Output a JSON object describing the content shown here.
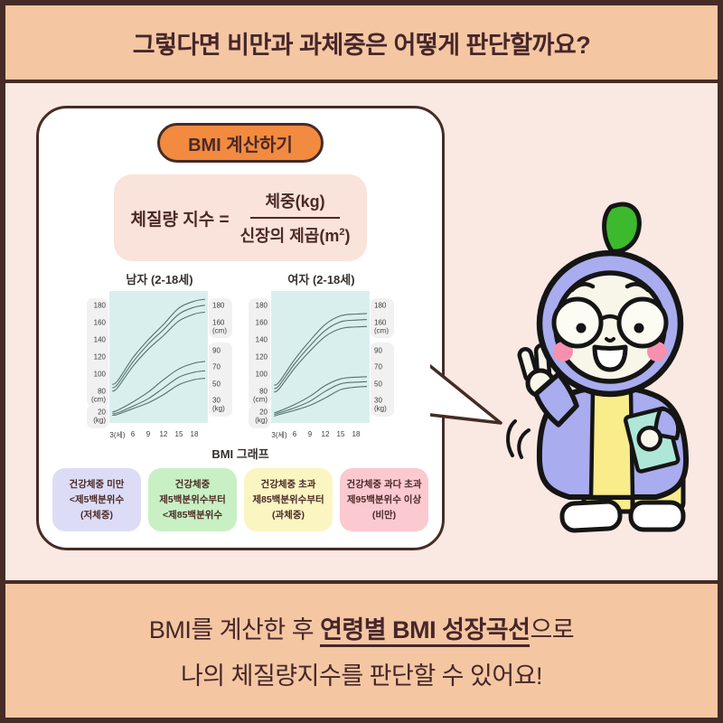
{
  "header": {
    "title": "그렇다면 비만과 과체중은 어떻게 판단할까요?"
  },
  "card": {
    "badge_label": "BMI 계산하기",
    "formula": {
      "lhs": "체질량 지수 =",
      "numerator": "체중(kg)",
      "den_pre": "신장의 제곱(m",
      "den_sup": "2",
      "den_post": ")"
    },
    "graph_caption": "BMI 그래프"
  },
  "chart_data": [
    {
      "type": "line",
      "title": "남자 (2-18세)",
      "x": [
        2,
        3,
        6,
        9,
        12,
        15,
        18
      ],
      "xtick_ages": [
        3,
        6,
        9,
        12,
        15,
        18
      ],
      "xtick_labels": [
        "3(세)",
        "6",
        "9",
        "12",
        "15",
        "18"
      ],
      "left_axis": {
        "cm_ticks": [
          180,
          160,
          140,
          120,
          100,
          80
        ],
        "cm_unit": "(cm)",
        "kg_tick": "20",
        "kg_unit": "(kg)"
      },
      "right_axis": {
        "cm_ticks": [
          180,
          160
        ],
        "cm_unit": "(cm)",
        "kg_ticks": [
          90,
          70,
          50,
          30
        ],
        "kg_unit": "(kg)"
      },
      "grid": false,
      "series": [
        {
          "name": "height-upper-percentile",
          "unit": "cm",
          "values": [
            88,
            92,
            119,
            140,
            158,
            177,
            185
          ]
        },
        {
          "name": "height-median",
          "unit": "cm",
          "values": [
            84,
            88,
            114,
            135,
            152,
            170,
            178
          ]
        },
        {
          "name": "height-lower-percentile",
          "unit": "cm",
          "values": [
            80,
            84,
            109,
            129,
            145,
            162,
            170
          ]
        },
        {
          "name": "weight-upper-percentile",
          "unit": "kg",
          "values": [
            16,
            18,
            28,
            40,
            55,
            68,
            75
          ]
        },
        {
          "name": "weight-median",
          "unit": "kg",
          "values": [
            14,
            15,
            23,
            32,
            45,
            58,
            64
          ]
        },
        {
          "name": "weight-lower-percentile",
          "unit": "kg",
          "values": [
            12,
            13,
            20,
            27,
            37,
            49,
            55
          ]
        }
      ]
    },
    {
      "type": "line",
      "title": "여자 (2-18세)",
      "x": [
        2,
        3,
        6,
        9,
        12,
        15,
        18
      ],
      "xtick_ages": [
        3,
        6,
        9,
        12,
        15,
        18
      ],
      "xtick_labels": [
        "3(세)",
        "6",
        "9",
        "12",
        "15",
        "18"
      ],
      "left_axis": {
        "cm_ticks": [
          180,
          160,
          140,
          120,
          100,
          80
        ],
        "cm_unit": "(cm)",
        "kg_tick": "20",
        "kg_unit": "(kg)"
      },
      "right_axis": {
        "cm_ticks": [
          180,
          160
        ],
        "cm_unit": "(cm)",
        "kg_ticks": [
          90,
          70,
          50,
          30
        ],
        "kg_unit": "(kg)"
      },
      "grid": false,
      "series": [
        {
          "name": "height-upper-percentile",
          "unit": "cm",
          "values": [
            87,
            91,
            117,
            139,
            158,
            168,
            170
          ]
        },
        {
          "name": "height-median",
          "unit": "cm",
          "values": [
            83,
            87,
            112,
            133,
            151,
            161,
            163
          ]
        },
        {
          "name": "height-lower-percentile",
          "unit": "cm",
          "values": [
            79,
            83,
            107,
            127,
            144,
            153,
            155
          ]
        },
        {
          "name": "weight-upper-percentile",
          "unit": "kg",
          "values": [
            15,
            17,
            25,
            35,
            48,
            56,
            58
          ]
        },
        {
          "name": "weight-median",
          "unit": "kg",
          "values": [
            13,
            15,
            21,
            29,
            41,
            50,
            52
          ]
        },
        {
          "name": "weight-lower-percentile",
          "unit": "kg",
          "values": [
            11,
            13,
            18,
            24,
            33,
            43,
            46
          ]
        }
      ]
    }
  ],
  "legend": [
    {
      "lines": [
        "건강체중 미만",
        "<제5백분위수",
        "(저체중)"
      ],
      "color": "#dcdcf7"
    },
    {
      "lines": [
        "건강체중",
        "제5백분위수부터",
        "<제85백분위수"
      ],
      "color": "#c9f0c4"
    },
    {
      "lines": [
        "건강체중 초과",
        "제85백분위수부터",
        "(과체중)"
      ],
      "color": "#fbf5c2"
    },
    {
      "lines": [
        "건강체중 과다 초과",
        "제95백분위수 이상",
        "(비만)"
      ],
      "color": "#fbc9d0"
    }
  ],
  "footer": {
    "line1_pre": "BMI를 계산한 후 ",
    "line1_em": "연령별 BMI 성장곡선",
    "line1_post": "으로",
    "line2": "나의 체질량지수를 판단할 수 있어요!"
  },
  "colors": {
    "border_dark": "#462b26",
    "band_bg": "#f4c7a2",
    "middle_bg": "#fae9e2",
    "card_bg": "#ffffff",
    "badge_bg": "#f28a40",
    "formula_box_bg": "#fae3da",
    "chart_plot_bg": "#d9efee",
    "axis_pill_bg": "#f1f1f1",
    "curve_stroke": "#54706f",
    "mascot_hood": "#a9acee",
    "mascot_leaf": "#3cb92c",
    "mascot_skin": "#f8f5e9",
    "mascot_cheek": "#f591ae",
    "mascot_clothes_yellow": "#f8ec8b",
    "mascot_book_mint": "#aee7d8"
  }
}
